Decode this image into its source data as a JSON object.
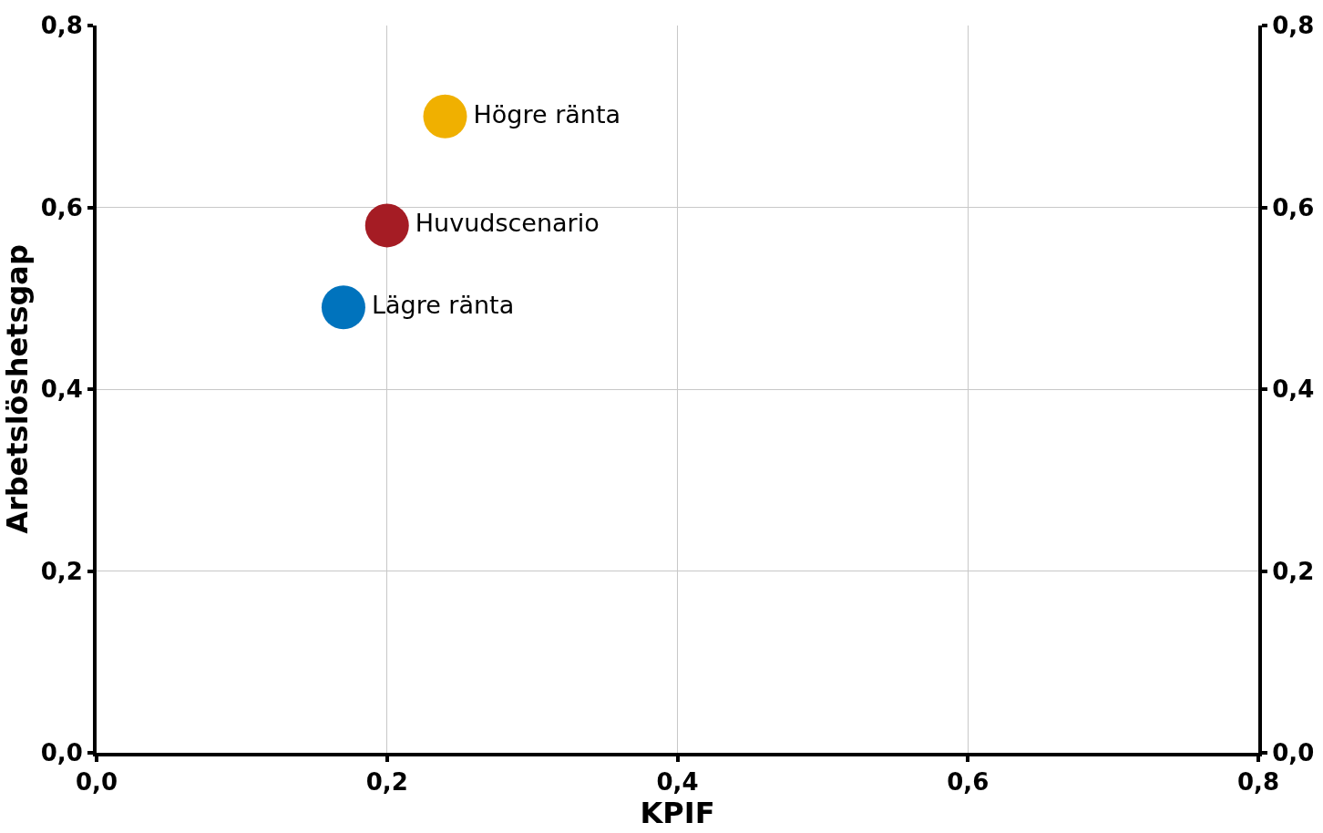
{
  "chart_data": {
    "type": "scatter",
    "xlabel": "KPIF",
    "ylabel": "Arbetslöshetsgap",
    "series": [
      {
        "name": "Högre ränta",
        "color": "#f0b000",
        "x": [
          0.24
        ],
        "values": [
          0.7
        ]
      },
      {
        "name": "Huvudscenario",
        "color": "#a51c24",
        "x": [
          0.2
        ],
        "values": [
          0.58
        ]
      },
      {
        "name": "Lägre ränta",
        "color": "#0073bd",
        "x": [
          0.17
        ],
        "values": [
          0.49
        ]
      }
    ],
    "xlim": [
      0,
      0.8
    ],
    "ylim": [
      0,
      0.8
    ],
    "y2lim": [
      0,
      0.8
    ],
    "xticks": [
      {
        "value": 0,
        "label": "0,0"
      },
      {
        "value": 0.2,
        "label": "0,2"
      },
      {
        "value": 0.4,
        "label": "0,4"
      },
      {
        "value": 0.6,
        "label": "0,6"
      },
      {
        "value": 0.8,
        "label": "0,8"
      }
    ],
    "yticks": [
      {
        "value": 0,
        "label": "0,0"
      },
      {
        "value": 0.2,
        "label": "0,2"
      },
      {
        "value": 0.4,
        "label": "0,4"
      },
      {
        "value": 0.6,
        "label": "0,6"
      },
      {
        "value": 0.8,
        "label": "0,8"
      }
    ],
    "y2ticks": [
      {
        "value": 0,
        "label": "0,0"
      },
      {
        "value": 0.2,
        "label": "0,2"
      },
      {
        "value": 0.4,
        "label": "0,4"
      },
      {
        "value": 0.6,
        "label": "0,6"
      },
      {
        "value": 0.8,
        "label": "0,8"
      }
    ],
    "grid": true,
    "legend": false,
    "marker": "circle"
  }
}
